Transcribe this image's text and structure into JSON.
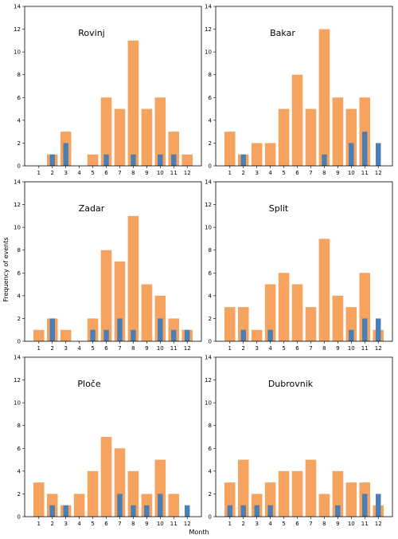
{
  "figure": {
    "xlabel": "Month",
    "ylabel": "Frequency of events"
  },
  "colors": {
    "orange": "#f5a35e",
    "blue": "#4a7fb5"
  },
  "chart_data": [
    {
      "type": "bar",
      "title": "Rovinj",
      "categories": [
        "1",
        "2",
        "3",
        "4",
        "5",
        "6",
        "7",
        "8",
        "9",
        "10",
        "11",
        "12"
      ],
      "series": [
        {
          "values": [
            0,
            1,
            3,
            0,
            1,
            6,
            5,
            11,
            5,
            6,
            3,
            1
          ]
        },
        {
          "values": [
            0,
            1,
            2,
            0,
            0,
            1,
            0,
            1,
            0,
            1,
            1,
            0
          ]
        }
      ],
      "ylim": [
        0,
        14
      ],
      "yticks": [
        "0",
        "2",
        "4",
        "6",
        "8",
        "10",
        "12",
        "14"
      ]
    },
    {
      "type": "bar",
      "title": "Bakar",
      "categories": [
        "1",
        "2",
        "3",
        "4",
        "5",
        "6",
        "7",
        "8",
        "9",
        "10",
        "11",
        "12"
      ],
      "series": [
        {
          "values": [
            3,
            1,
            2,
            2,
            5,
            8,
            5,
            12,
            6,
            5,
            6,
            0
          ]
        },
        {
          "values": [
            0,
            1,
            0,
            0,
            0,
            0,
            0,
            1,
            0,
            2,
            3,
            2
          ]
        }
      ],
      "ylim": [
        0,
        14
      ],
      "yticks": [
        "0",
        "2",
        "4",
        "6",
        "8",
        "10",
        "12",
        "14"
      ]
    },
    {
      "type": "bar",
      "title": "Zadar",
      "categories": [
        "1",
        "2",
        "3",
        "4",
        "5",
        "6",
        "7",
        "8",
        "9",
        "10",
        "11",
        "12"
      ],
      "series": [
        {
          "values": [
            1,
            2,
            1,
            0,
            2,
            8,
            7,
            11,
            5,
            4,
            2,
            1
          ]
        },
        {
          "values": [
            0,
            2,
            0,
            0,
            1,
            1,
            2,
            1,
            0,
            2,
            1,
            1
          ]
        }
      ],
      "ylim": [
        0,
        14
      ],
      "yticks": [
        "0",
        "2",
        "4",
        "6",
        "8",
        "10",
        "12",
        "14"
      ]
    },
    {
      "type": "bar",
      "title": "Split",
      "categories": [
        "1",
        "2",
        "3",
        "4",
        "5",
        "6",
        "7",
        "8",
        "9",
        "10",
        "11",
        "12"
      ],
      "series": [
        {
          "values": [
            3,
            3,
            1,
            5,
            6,
            5,
            3,
            9,
            4,
            3,
            6,
            1
          ]
        },
        {
          "values": [
            0,
            1,
            0,
            1,
            0,
            0,
            0,
            0,
            0,
            1,
            2,
            2
          ]
        }
      ],
      "ylim": [
        0,
        14
      ],
      "yticks": [
        "0",
        "2",
        "4",
        "6",
        "8",
        "10",
        "12",
        "14"
      ]
    },
    {
      "type": "bar",
      "title": "Ploče",
      "categories": [
        "1",
        "2",
        "3",
        "4",
        "5",
        "6",
        "7",
        "8",
        "9",
        "10",
        "11",
        "12"
      ],
      "series": [
        {
          "values": [
            3,
            2,
            1,
            2,
            4,
            7,
            6,
            4,
            2,
            5,
            2,
            0
          ]
        },
        {
          "values": [
            0,
            1,
            1,
            0,
            0,
            0,
            2,
            1,
            1,
            2,
            0,
            1
          ]
        }
      ],
      "ylim": [
        0,
        14
      ],
      "yticks": [
        "0",
        "2",
        "4",
        "6",
        "8",
        "10",
        "12",
        "14"
      ]
    },
    {
      "type": "bar",
      "title": "Dubrovnik",
      "categories": [
        "1",
        "2",
        "3",
        "4",
        "5",
        "6",
        "7",
        "8",
        "9",
        "10",
        "11",
        "12"
      ],
      "series": [
        {
          "values": [
            3,
            5,
            2,
            3,
            4,
            4,
            5,
            2,
            4,
            3,
            3,
            1
          ]
        },
        {
          "values": [
            1,
            1,
            1,
            1,
            0,
            0,
            0,
            0,
            1,
            0,
            2,
            2
          ]
        }
      ],
      "ylim": [
        0,
        14
      ],
      "yticks": [
        "0",
        "2",
        "4",
        "6",
        "8",
        "10",
        "12",
        "14"
      ]
    }
  ]
}
